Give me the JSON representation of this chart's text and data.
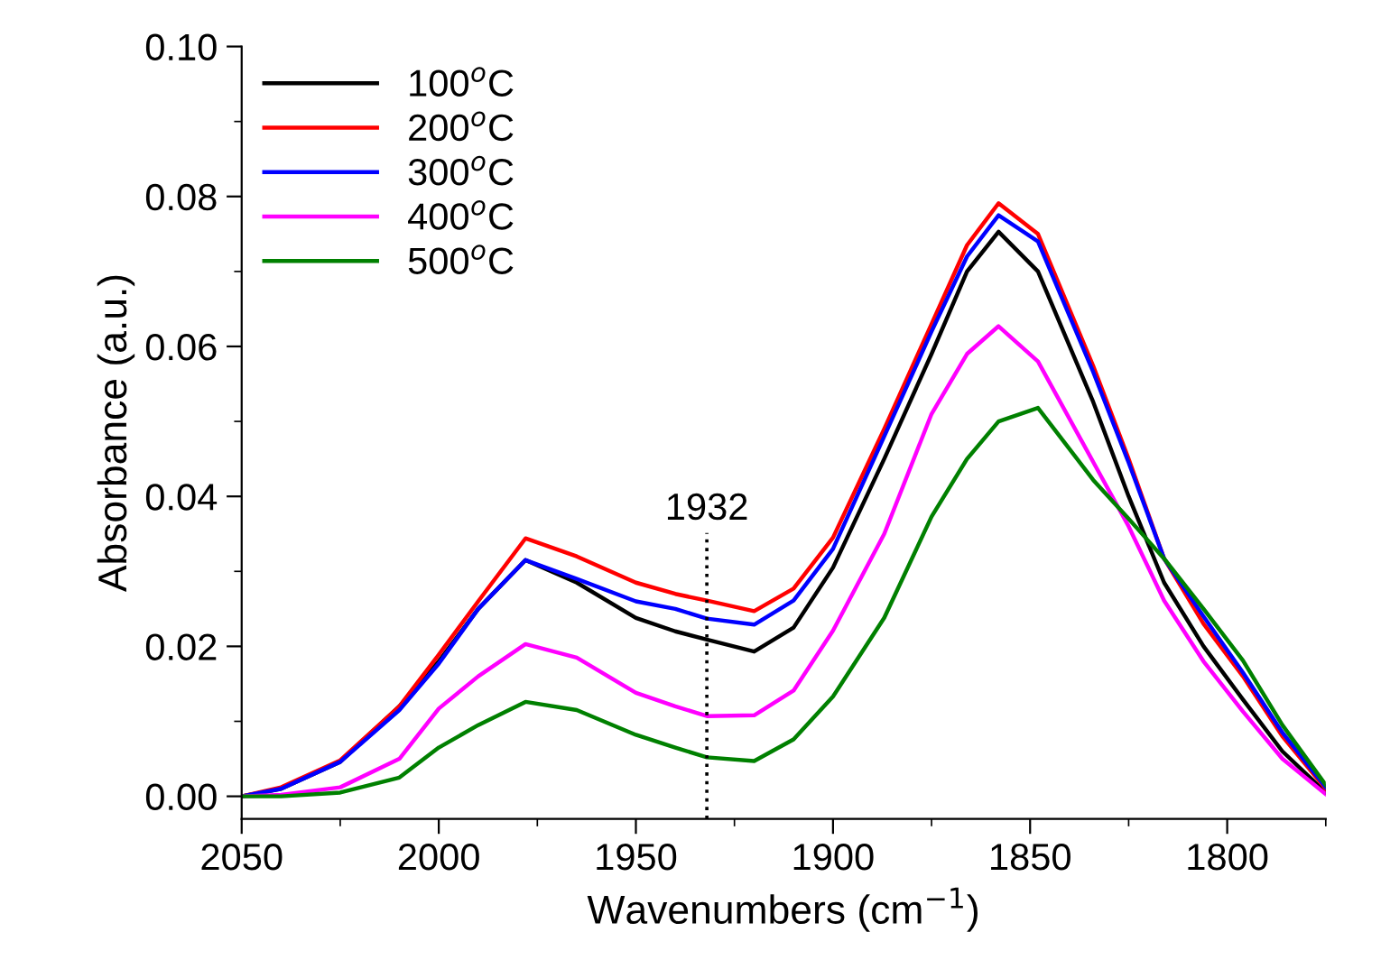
{
  "chart_data": {
    "type": "line",
    "xlabel": "Wavenumbers (cm$^{−1}$)",
    "ylabel": "Absorbance (a.u.)",
    "x": [
      2050,
      2040,
      2025,
      2010,
      2000,
      1990,
      1978,
      1965,
      1950,
      1940,
      1932,
      1920,
      1910,
      1900,
      1887,
      1875,
      1866,
      1858,
      1848,
      1834,
      1825,
      1816,
      1806,
      1796,
      1786,
      1775
    ],
    "series": [
      {
        "name": "100$^{o}$C",
        "color": "#000000",
        "values": [
          0,
          0.001,
          0.0046,
          0.012,
          0.018,
          0.025,
          0.0315,
          0.0285,
          0.0238,
          0.022,
          0.0209,
          0.0193,
          0.0225,
          0.0305,
          0.045,
          0.059,
          0.07,
          0.0753,
          0.07,
          0.0526,
          0.04,
          0.0285,
          0.02,
          0.0129,
          0.006,
          0.0005
        ]
      },
      {
        "name": "200$^{o}$C",
        "color": "#ff0000",
        "values": [
          0,
          0.0012,
          0.0048,
          0.012,
          0.0189,
          0.026,
          0.0344,
          0.032,
          0.0285,
          0.027,
          0.0261,
          0.0247,
          0.0277,
          0.0345,
          0.049,
          0.063,
          0.0735,
          0.0791,
          0.075,
          0.0574,
          0.045,
          0.0317,
          0.023,
          0.016,
          0.008,
          0.001
        ]
      },
      {
        "name": "300$^{o}$C",
        "color": "#0000ff",
        "values": [
          0,
          0.001,
          0.0046,
          0.0115,
          0.0177,
          0.025,
          0.0315,
          0.029,
          0.026,
          0.025,
          0.0237,
          0.0229,
          0.0261,
          0.033,
          0.048,
          0.062,
          0.072,
          0.0775,
          0.074,
          0.0566,
          0.0445,
          0.0317,
          0.024,
          0.0165,
          0.0085,
          0.0012
        ]
      },
      {
        "name": "400$^{o}$C",
        "color": "#ff00ff",
        "values": [
          0,
          0.0002,
          0.0012,
          0.005,
          0.0117,
          0.016,
          0.0203,
          0.0185,
          0.0138,
          0.012,
          0.0107,
          0.0108,
          0.0141,
          0.0221,
          0.035,
          0.051,
          0.059,
          0.0627,
          0.058,
          0.0446,
          0.036,
          0.0261,
          0.018,
          0.0113,
          0.005,
          0.0003
        ]
      },
      {
        "name": "500$^{o}$C",
        "color": "#008000",
        "values": [
          0,
          0,
          0.0005,
          0.0025,
          0.0065,
          0.0095,
          0.0126,
          0.0115,
          0.0082,
          0.0065,
          0.0052,
          0.0047,
          0.0076,
          0.0133,
          0.0238,
          0.0373,
          0.045,
          0.05,
          0.0518,
          0.0422,
          0.037,
          0.0317,
          0.025,
          0.0181,
          0.0095,
          0.0015
        ]
      }
    ],
    "xlim": [
      2050,
      1775
    ],
    "xticks": [
      2050,
      2000,
      1950,
      1900,
      1850,
      1800
    ],
    "ylim": [
      -0.003,
      0.1
    ],
    "yticks": [
      {
        "value": 0,
        "label": "0.00"
      },
      {
        "value": 0.02,
        "label": "0.02"
      },
      {
        "value": 0.04,
        "label": "0.04"
      },
      {
        "value": 0.06,
        "label": "0.06"
      },
      {
        "value": 0.08,
        "label": "0.08"
      },
      {
        "value": 0.1,
        "label": "0.10"
      }
    ],
    "ref_lines": [
      {
        "axis": "x",
        "value": 1932,
        "label": "1932",
        "color": "#000000",
        "line_style": "dotted"
      }
    ],
    "legend": "top left",
    "grid": false,
    "marker": "none",
    "line_style": "solid"
  }
}
